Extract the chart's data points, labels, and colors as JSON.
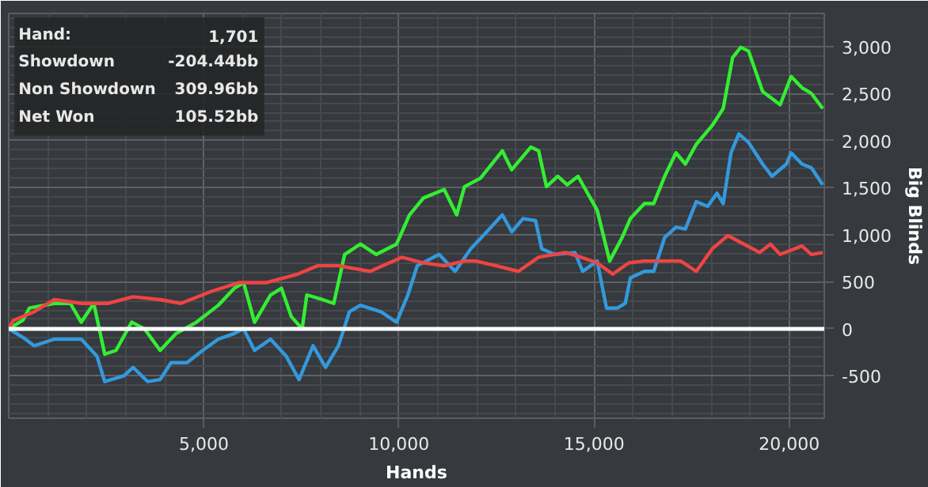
{
  "chart_data": {
    "type": "line",
    "xlabel": "Hands",
    "ylabel": "Big Blinds",
    "xlim": [
      0,
      20900
    ],
    "ylim": [
      -950,
      3350
    ],
    "xticks": [
      {
        "value": 5000,
        "label": "5,000"
      },
      {
        "value": 10000,
        "label": "10,000"
      },
      {
        "value": 15000,
        "label": "15,000"
      },
      {
        "value": 20000,
        "label": "20,000"
      }
    ],
    "yticks": [
      -500,
      0,
      500,
      {
        "value": 1000,
        "label": "1,000"
      },
      {
        "value": 1500,
        "label": "1,500"
      },
      {
        "value": 2000,
        "label": "2,000"
      },
      {
        "value": 2500,
        "label": "2,500"
      },
      {
        "value": 3000,
        "label": "3,000"
      }
    ],
    "grid": true,
    "ref_lines": [
      {
        "axis": "y",
        "value": 0,
        "color": "#ffffff"
      }
    ],
    "annotations": [
      "Hand:",
      "1,701",
      "Showdown",
      "-204.44bb",
      "Non Showdown",
      "309.96bb",
      "Net Won",
      "105.52bb"
    ],
    "series": [
      {
        "color": "#33ee33",
        "x": [
          0,
          360,
          530,
          1170,
          1580,
          1860,
          2180,
          2460,
          2750,
          3150,
          3480,
          3880,
          4290,
          4810,
          5370,
          5780,
          6020,
          6300,
          6710,
          6990,
          7240,
          7520,
          7640,
          8040,
          8330,
          8610,
          9010,
          9420,
          9940,
          10270,
          10630,
          11160,
          11480,
          11680,
          12090,
          12650,
          12890,
          13380,
          13580,
          13780,
          14070,
          14310,
          14590,
          15080,
          15400,
          15720,
          15930,
          16290,
          16530,
          16810,
          17100,
          17340,
          17620,
          18030,
          18310,
          18550,
          18760,
          18960,
          19320,
          19770,
          20050,
          20330,
          20570,
          20860
        ],
        "values": [
          0,
          90,
          220,
          270,
          270,
          70,
          270,
          -270,
          -230,
          70,
          0,
          -230,
          -50,
          70,
          250,
          430,
          490,
          70,
          360,
          430,
          130,
          0,
          360,
          310,
          270,
          790,
          900,
          790,
          900,
          1210,
          1390,
          1480,
          1210,
          1510,
          1600,
          1890,
          1690,
          1930,
          1890,
          1510,
          1620,
          1530,
          1620,
          1260,
          720,
          970,
          1170,
          1330,
          1330,
          1620,
          1870,
          1750,
          1960,
          2160,
          2340,
          2880,
          2990,
          2950,
          2520,
          2380,
          2680,
          2560,
          2500,
          2340
        ]
      },
      {
        "color": "#3399dd",
        "x": [
          0,
          360,
          650,
          1170,
          1860,
          2260,
          2460,
          2950,
          3190,
          3560,
          3880,
          4160,
          4570,
          4970,
          5370,
          5780,
          6020,
          6300,
          6710,
          7110,
          7440,
          7800,
          8120,
          8450,
          8730,
          9010,
          9540,
          9940,
          10230,
          10470,
          11030,
          11440,
          11840,
          12250,
          12650,
          12890,
          13180,
          13500,
          13660,
          13990,
          14510,
          14710,
          15080,
          15320,
          15600,
          15800,
          15930,
          16290,
          16530,
          16810,
          17100,
          17340,
          17620,
          17910,
          18150,
          18310,
          18510,
          18710,
          18960,
          19320,
          19560,
          19930,
          20050,
          20330,
          20570,
          20860
        ],
        "values": [
          0,
          -90,
          -180,
          -110,
          -110,
          -290,
          -560,
          -500,
          -410,
          -560,
          -540,
          -360,
          -360,
          -230,
          -110,
          -50,
          0,
          -230,
          -110,
          -290,
          -540,
          -180,
          -410,
          -180,
          180,
          250,
          180,
          70,
          360,
          670,
          790,
          610,
          850,
          1030,
          1210,
          1030,
          1170,
          1150,
          850,
          790,
          810,
          610,
          720,
          220,
          220,
          270,
          540,
          610,
          610,
          970,
          1080,
          1060,
          1350,
          1300,
          1440,
          1330,
          1870,
          2070,
          1980,
          1750,
          1620,
          1750,
          1870,
          1750,
          1710,
          1530
        ]
      },
      {
        "color": "#ee4444",
        "x": [
          0,
          120,
          650,
          1170,
          1860,
          2550,
          3190,
          3880,
          4410,
          5210,
          5900,
          6590,
          7400,
          7920,
          8450,
          9260,
          10070,
          10630,
          11160,
          11680,
          11960,
          12490,
          13060,
          13580,
          14270,
          14670,
          15080,
          15480,
          15890,
          16290,
          16810,
          17220,
          17620,
          18030,
          18430,
          18840,
          19240,
          19520,
          19770,
          20330,
          20570,
          20860
        ],
        "values": [
          0,
          90,
          180,
          310,
          270,
          270,
          340,
          310,
          270,
          400,
          490,
          490,
          580,
          670,
          670,
          610,
          760,
          700,
          670,
          720,
          720,
          670,
          610,
          760,
          810,
          760,
          700,
          580,
          700,
          720,
          720,
          720,
          610,
          850,
          990,
          900,
          810,
          900,
          790,
          880,
          790,
          810
        ]
      }
    ]
  }
}
